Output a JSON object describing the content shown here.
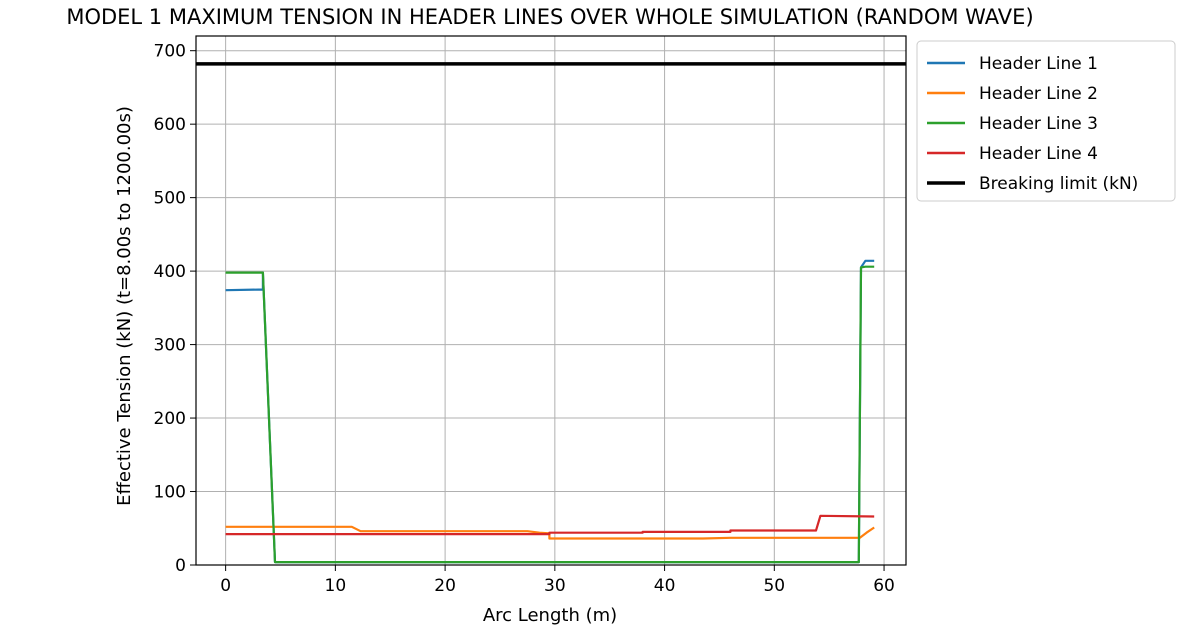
{
  "chart_data": {
    "type": "line",
    "title": "MODEL 1 MAXIMUM TENSION IN HEADER LINES OVER WHOLE SIMULATION (RANDOM WAVE)",
    "xlabel": "Arc Length (m)",
    "ylabel": "Effective Tension (kN)  (t=8.00s to 1200.00s)",
    "xlim": [
      -2.7,
      62
    ],
    "ylim": [
      0,
      720
    ],
    "xticks": [
      0,
      10,
      20,
      30,
      40,
      50,
      60
    ],
    "yticks": [
      0,
      100,
      200,
      300,
      400,
      500,
      600,
      700
    ],
    "grid": true,
    "legend_position": "outside-right-top",
    "series": [
      {
        "name": "Header Line 1",
        "color": "#1f77b4",
        "x": [
          0,
          3.4,
          3.4,
          4.5,
          57.7,
          57.9,
          58.3,
          59.1
        ],
        "y": [
          374,
          375,
          398,
          4,
          4,
          405,
          414,
          414
        ]
      },
      {
        "name": "Header Line 2",
        "color": "#ff7f0e",
        "x": [
          0,
          11.5,
          12.3,
          27.5,
          28.6,
          29.5,
          29.5,
          43.5,
          46,
          57.8,
          58.4,
          59.1
        ],
        "y": [
          52,
          52,
          46,
          46,
          44,
          43,
          36,
          36,
          37,
          37,
          44,
          51
        ]
      },
      {
        "name": "Header Line 3",
        "color": "#2ca02c",
        "x": [
          0,
          3.4,
          4.5,
          57.7,
          57.9,
          58.3,
          59.1
        ],
        "y": [
          398,
          398,
          4,
          4,
          405,
          406,
          406
        ]
      },
      {
        "name": "Header Line 4",
        "color": "#d62728",
        "x": [
          0,
          29.5,
          29.5,
          38,
          38,
          46,
          46,
          53.8,
          54.2,
          59.1
        ],
        "y": [
          42,
          42,
          44,
          44,
          45,
          45,
          47,
          47,
          67,
          66
        ]
      },
      {
        "name": "Breaking limit (kN)",
        "color": "#000000",
        "x": [
          -2.7,
          62
        ],
        "y": [
          682,
          682
        ],
        "width": 3.5
      }
    ]
  }
}
